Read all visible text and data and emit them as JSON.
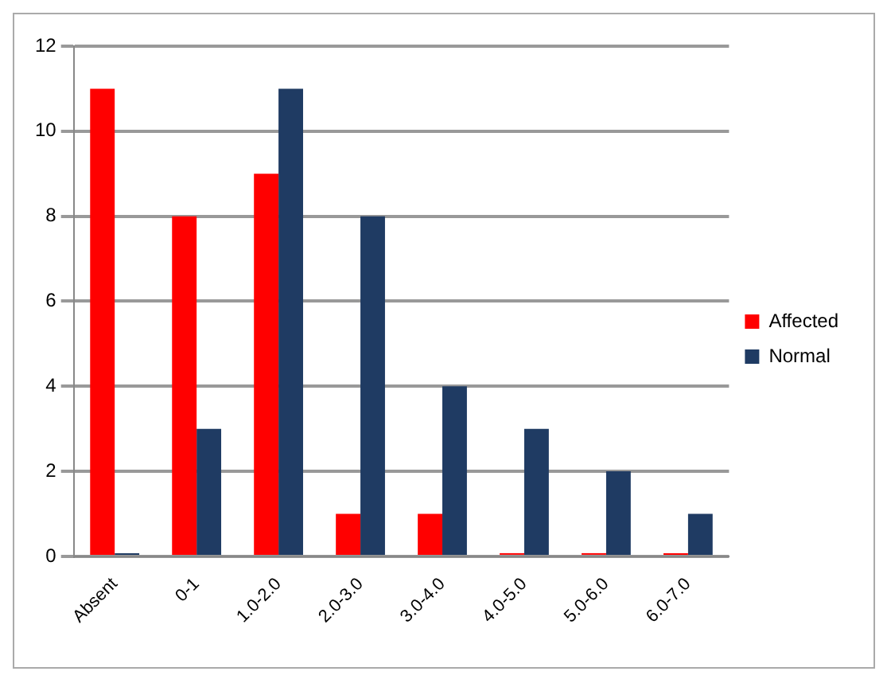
{
  "chart_data": {
    "type": "bar",
    "categories": [
      "Absent",
      "0-1",
      "1.0-2.0",
      "2.0-3.0",
      "3.0-4.0",
      "4.0-5.0",
      "5.0-6.0",
      "6.0-7.0"
    ],
    "series": [
      {
        "name": "Affected",
        "color": "#ff0000",
        "values": [
          11,
          8,
          9,
          1,
          1,
          0,
          0,
          0
        ]
      },
      {
        "name": "Normal",
        "color": "#1f3b63",
        "values": [
          0,
          3,
          11,
          8,
          4,
          3,
          2,
          1
        ]
      }
    ],
    "ylim": [
      0,
      12
    ],
    "yticks": [
      0,
      2,
      4,
      6,
      8,
      10,
      12
    ],
    "grid": "y",
    "legend": "right"
  }
}
